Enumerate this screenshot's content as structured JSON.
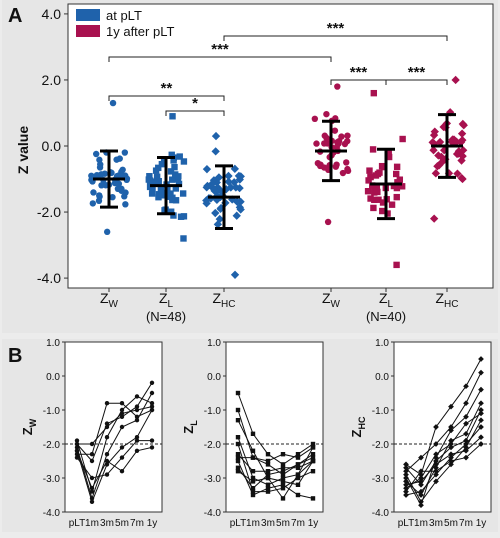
{
  "panel_letters": {
    "a": "A",
    "b": "B"
  },
  "legend": [
    {
      "label": "at pLT",
      "color": "#1f62ab"
    },
    {
      "label": "1y after pLT",
      "color": "#a8114f"
    }
  ],
  "colors": {
    "blue": "#1f62ab",
    "red": "#a8114f"
  },
  "chart_data": [
    {
      "type": "scatter",
      "title": "",
      "ylabel": "Z value",
      "ylim": [
        -4.3,
        4.3
      ],
      "y_ticks": [
        "4.0",
        "2.0",
        "0.0",
        "-2.0",
        "-4.0"
      ],
      "group_labels": [
        {
          "base": "Z",
          "sub": "W"
        },
        {
          "base": "Z",
          "sub": "L"
        },
        {
          "base": "Z",
          "sub": "HC"
        },
        {
          "base": "Z",
          "sub": "W"
        },
        {
          "base": "Z",
          "sub": "L"
        },
        {
          "base": "Z",
          "sub": "HC"
        }
      ],
      "n_labels": [
        "(N=48)",
        "(N=40)"
      ],
      "significance": [
        {
          "from": "ZW at pLT",
          "to": "ZHC at pLT",
          "label": "**"
        },
        {
          "from": "ZL at pLT",
          "to": "ZHC at pLT",
          "label": "*"
        },
        {
          "from": "ZW at pLT",
          "to": "ZW 1y",
          "label": "***"
        },
        {
          "from": "ZHC at pLT",
          "to": "ZHC 1y",
          "label": "***"
        },
        {
          "from": "ZW 1y",
          "to": "ZL 1y",
          "label": "***"
        },
        {
          "from": "ZL 1y",
          "to": "ZHC 1y",
          "label": "***"
        }
      ],
      "series": [
        {
          "name": "at pLT",
          "group": "ZW",
          "marker": "circle",
          "mean": -1.0,
          "sd": 0.85,
          "min": -2.6,
          "max": 1.3,
          "n": 48
        },
        {
          "name": "at pLT",
          "group": "ZL",
          "marker": "square",
          "mean": -1.2,
          "sd": 0.85,
          "min": -2.8,
          "max": 0.9,
          "n": 48
        },
        {
          "name": "at pLT",
          "group": "ZHC",
          "marker": "diamond",
          "mean": -1.55,
          "sd": 0.95,
          "min": -3.9,
          "max": 0.3,
          "n": 48
        },
        {
          "name": "1y after pLT",
          "group": "ZW",
          "marker": "circle",
          "mean": -0.15,
          "sd": 0.9,
          "min": -2.3,
          "max": 1.8,
          "n": 40
        },
        {
          "name": "1y after pLT",
          "group": "ZL",
          "marker": "square",
          "mean": -1.15,
          "sd": 1.05,
          "min": -3.6,
          "max": 1.6,
          "n": 40
        },
        {
          "name": "1y after pLT",
          "group": "ZHC",
          "marker": "diamond",
          "mean": 0.0,
          "sd": 0.95,
          "min": -2.2,
          "max": 2.0,
          "n": 40
        }
      ]
    },
    {
      "type": "line",
      "ylabel": {
        "base": "Z",
        "sub": "W"
      },
      "categories": [
        "pLT",
        "1m",
        "3m",
        "5m",
        "7m",
        "1y"
      ],
      "ylim": [
        -4.0,
        1.0
      ],
      "y_ticks": [
        "1.0",
        "0.0",
        "-1.0",
        "-2.0",
        "-3.0",
        "-4.0"
      ],
      "reference_line": -2.0,
      "marker": "circle",
      "series": [
        {
          "values": [
            -2.0,
            -2.5,
            -1.4,
            -1.2,
            -0.9,
            -0.2
          ]
        },
        {
          "values": [
            -2.1,
            -3.6,
            -2.3,
            -1.5,
            -1.3,
            -0.5
          ]
        },
        {
          "values": [
            -2.2,
            -3.7,
            -2.6,
            -2.1,
            -1.8,
            -1.0
          ]
        },
        {
          "values": [
            -1.9,
            -3.4,
            -1.8,
            -1.0,
            -0.6,
            -0.8
          ]
        },
        {
          "values": [
            -2.3,
            -2.3,
            -0.8,
            -0.8,
            -1.2,
            -1.0
          ]
        },
        {
          "values": [
            -2.2,
            -3.3,
            -2.5,
            -2.8,
            -2.2,
            -2.1
          ]
        },
        {
          "values": [
            -2.0,
            -2.0,
            -1.5,
            -1.1,
            -1.0,
            -0.9
          ]
        },
        {
          "values": [
            -2.4,
            -3.0,
            -2.9,
            -2.4,
            -1.9,
            -1.9
          ]
        }
      ]
    },
    {
      "type": "line",
      "ylabel": {
        "base": "Z",
        "sub": "L"
      },
      "categories": [
        "pLT",
        "1m",
        "3m",
        "5m",
        "7m",
        "1y"
      ],
      "ylim": [
        -4.0,
        1.0
      ],
      "y_ticks": [
        "1.0",
        "0.0",
        "-1.0",
        "-2.0",
        "-3.0",
        "-4.0"
      ],
      "reference_line": -2.0,
      "marker": "square",
      "series": [
        {
          "values": [
            -0.5,
            -1.7,
            -2.3,
            -2.6,
            -2.3,
            -2.0
          ]
        },
        {
          "values": [
            -1.0,
            -2.4,
            -2.6,
            -2.9,
            -2.6,
            -2.3
          ]
        },
        {
          "values": [
            -1.3,
            -2.2,
            -3.0,
            -3.1,
            -3.2,
            -2.5
          ]
        },
        {
          "values": [
            -1.8,
            -3.0,
            -3.2,
            -3.0,
            -2.9,
            -2.1
          ]
        },
        {
          "values": [
            -2.0,
            -3.4,
            -3.4,
            -3.3,
            -3.0,
            -2.8
          ]
        },
        {
          "values": [
            -2.3,
            -2.8,
            -2.8,
            -2.7,
            -2.7,
            -2.5
          ]
        },
        {
          "values": [
            -2.4,
            -2.4,
            -2.5,
            -2.3,
            -2.4,
            -2.1
          ]
        },
        {
          "values": [
            -2.5,
            -3.5,
            -3.3,
            -3.2,
            -3.5,
            -3.6
          ]
        },
        {
          "values": [
            -2.7,
            -3.3,
            -2.9,
            -2.8,
            -2.6,
            -2.4
          ]
        },
        {
          "values": [
            -2.8,
            -3.1,
            -3.0,
            -3.6,
            -2.9,
            -2.5
          ]
        }
      ]
    },
    {
      "type": "line",
      "ylabel": {
        "base": "Z",
        "sub": "HC"
      },
      "categories": [
        "pLT",
        "1m",
        "3m",
        "5m",
        "7m",
        "1y"
      ],
      "ylim": [
        -4.0,
        1.0
      ],
      "y_ticks": [
        "1.0",
        "0.0",
        "-1.0",
        "-2.0",
        "-3.0",
        "-4.0"
      ],
      "reference_line": -2.0,
      "marker": "diamond",
      "series": [
        {
          "values": [
            -2.6,
            -2.9,
            -1.5,
            -0.9,
            -0.3,
            0.5
          ]
        },
        {
          "values": [
            -2.8,
            -2.4,
            -2.0,
            -1.5,
            -0.8,
            0.1
          ]
        },
        {
          "values": [
            -3.0,
            -3.8,
            -2.4,
            -1.6,
            -1.2,
            -0.4
          ]
        },
        {
          "values": [
            -3.1,
            -3.5,
            -2.7,
            -1.9,
            -1.7,
            -0.8
          ]
        },
        {
          "values": [
            -3.3,
            -3.0,
            -2.3,
            -2.0,
            -1.4,
            -1.1
          ]
        },
        {
          "values": [
            -3.5,
            -3.4,
            -2.9,
            -2.4,
            -2.0,
            -1.5
          ]
        },
        {
          "values": [
            -2.9,
            -3.7,
            -3.1,
            -2.6,
            -2.1,
            -1.3
          ]
        },
        {
          "values": [
            -3.2,
            -3.1,
            -2.6,
            -2.3,
            -2.2,
            -1.8
          ]
        },
        {
          "values": [
            -2.7,
            -3.2,
            -2.5,
            -2.1,
            -1.9,
            -1.0
          ]
        },
        {
          "values": [
            -3.4,
            -2.8,
            -2.8,
            -2.5,
            -2.4,
            -2.0
          ]
        }
      ]
    }
  ]
}
